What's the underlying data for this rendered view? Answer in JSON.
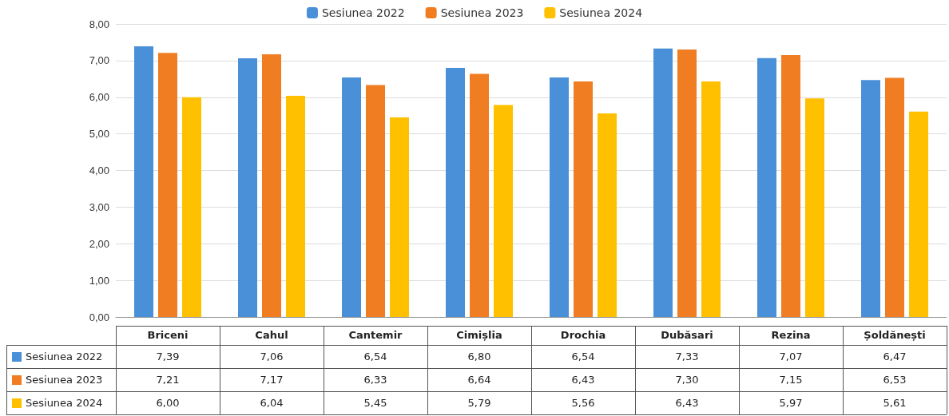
{
  "chart_data": {
    "type": "bar",
    "categories": [
      "Briceni",
      "Cahul",
      "Cantemir",
      "Cimișlia",
      "Drochia",
      "Dubăsari",
      "Rezina",
      "Șoldănești"
    ],
    "series": [
      {
        "name": "Sesiunea 2022",
        "color": "#4a90d9",
        "values": [
          7.39,
          7.06,
          6.54,
          6.8,
          6.54,
          7.33,
          7.07,
          6.47
        ],
        "value_labels": [
          "7,39",
          "7,06",
          "6,54",
          "6,80",
          "6,54",
          "7,33",
          "7,07",
          "6,47"
        ]
      },
      {
        "name": "Sesiunea 2023",
        "color": "#f07d22",
        "values": [
          7.21,
          7.17,
          6.33,
          6.64,
          6.43,
          7.3,
          7.15,
          6.53
        ],
        "value_labels": [
          "7,21",
          "7,17",
          "6,33",
          "6,64",
          "6,43",
          "7,30",
          "7,15",
          "6,53"
        ]
      },
      {
        "name": "Sesiunea 2024",
        "color": "#ffc000",
        "values": [
          6.0,
          6.04,
          5.45,
          5.79,
          5.56,
          6.43,
          5.97,
          5.61
        ],
        "value_labels": [
          "6,00",
          "6,04",
          "5,45",
          "5,79",
          "5,56",
          "6,43",
          "5,97",
          "5,61"
        ]
      }
    ],
    "ylim": [
      0,
      8
    ],
    "yticks": [
      {
        "value": 0,
        "label": "0,00"
      },
      {
        "value": 1,
        "label": "1,00"
      },
      {
        "value": 2,
        "label": "2,00"
      },
      {
        "value": 3,
        "label": "3,00"
      },
      {
        "value": 4,
        "label": "4,00"
      },
      {
        "value": 5,
        "label": "5,00"
      },
      {
        "value": 6,
        "label": "6,00"
      },
      {
        "value": 7,
        "label": "7,00"
      },
      {
        "value": 8,
        "label": "8,00"
      }
    ],
    "grid": "y",
    "legend": "top"
  }
}
